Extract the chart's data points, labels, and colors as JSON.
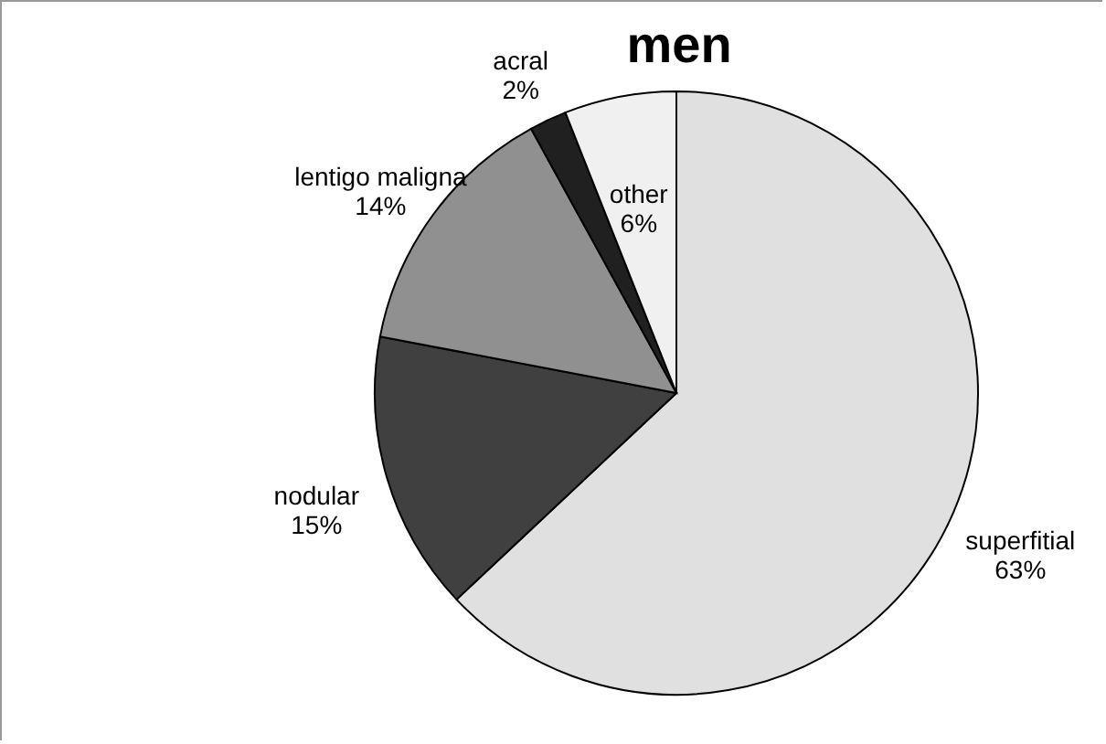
{
  "chart_data": {
    "type": "pie",
    "title": "men",
    "categories": [
      "superfitial",
      "nodular",
      "lentigo maligna",
      "acral",
      "other"
    ],
    "values": [
      63,
      15,
      14,
      2,
      6
    ],
    "value_labels": [
      "63%",
      "15%",
      "14%",
      "2%",
      "6%"
    ],
    "colors": [
      "#e0e0e0",
      "#404040",
      "#909090",
      "#202020",
      "#f0f0f0"
    ],
    "legend": false
  }
}
